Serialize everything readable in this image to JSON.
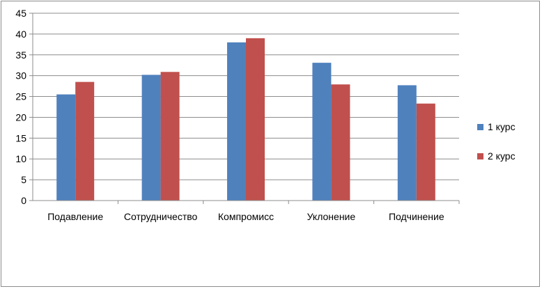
{
  "chart_data": {
    "type": "bar",
    "categories": [
      "Подавление",
      "Сотрудничество",
      "Компромисс",
      "Уклонение",
      "Подчинение"
    ],
    "series": [
      {
        "name": "1 курс",
        "values": [
          25.5,
          30.2,
          38.0,
          33.1,
          27.7
        ],
        "color": "#4f81bd"
      },
      {
        "name": "2 курс",
        "values": [
          28.5,
          30.9,
          39.0,
          27.9,
          23.3
        ],
        "color": "#c0504d"
      }
    ],
    "yticks": [
      "0",
      "5",
      "10",
      "15",
      "20",
      "25",
      "30",
      "35",
      "40",
      "45"
    ],
    "ylim": [
      0,
      45
    ],
    "grid": true,
    "legend_position": "right"
  }
}
